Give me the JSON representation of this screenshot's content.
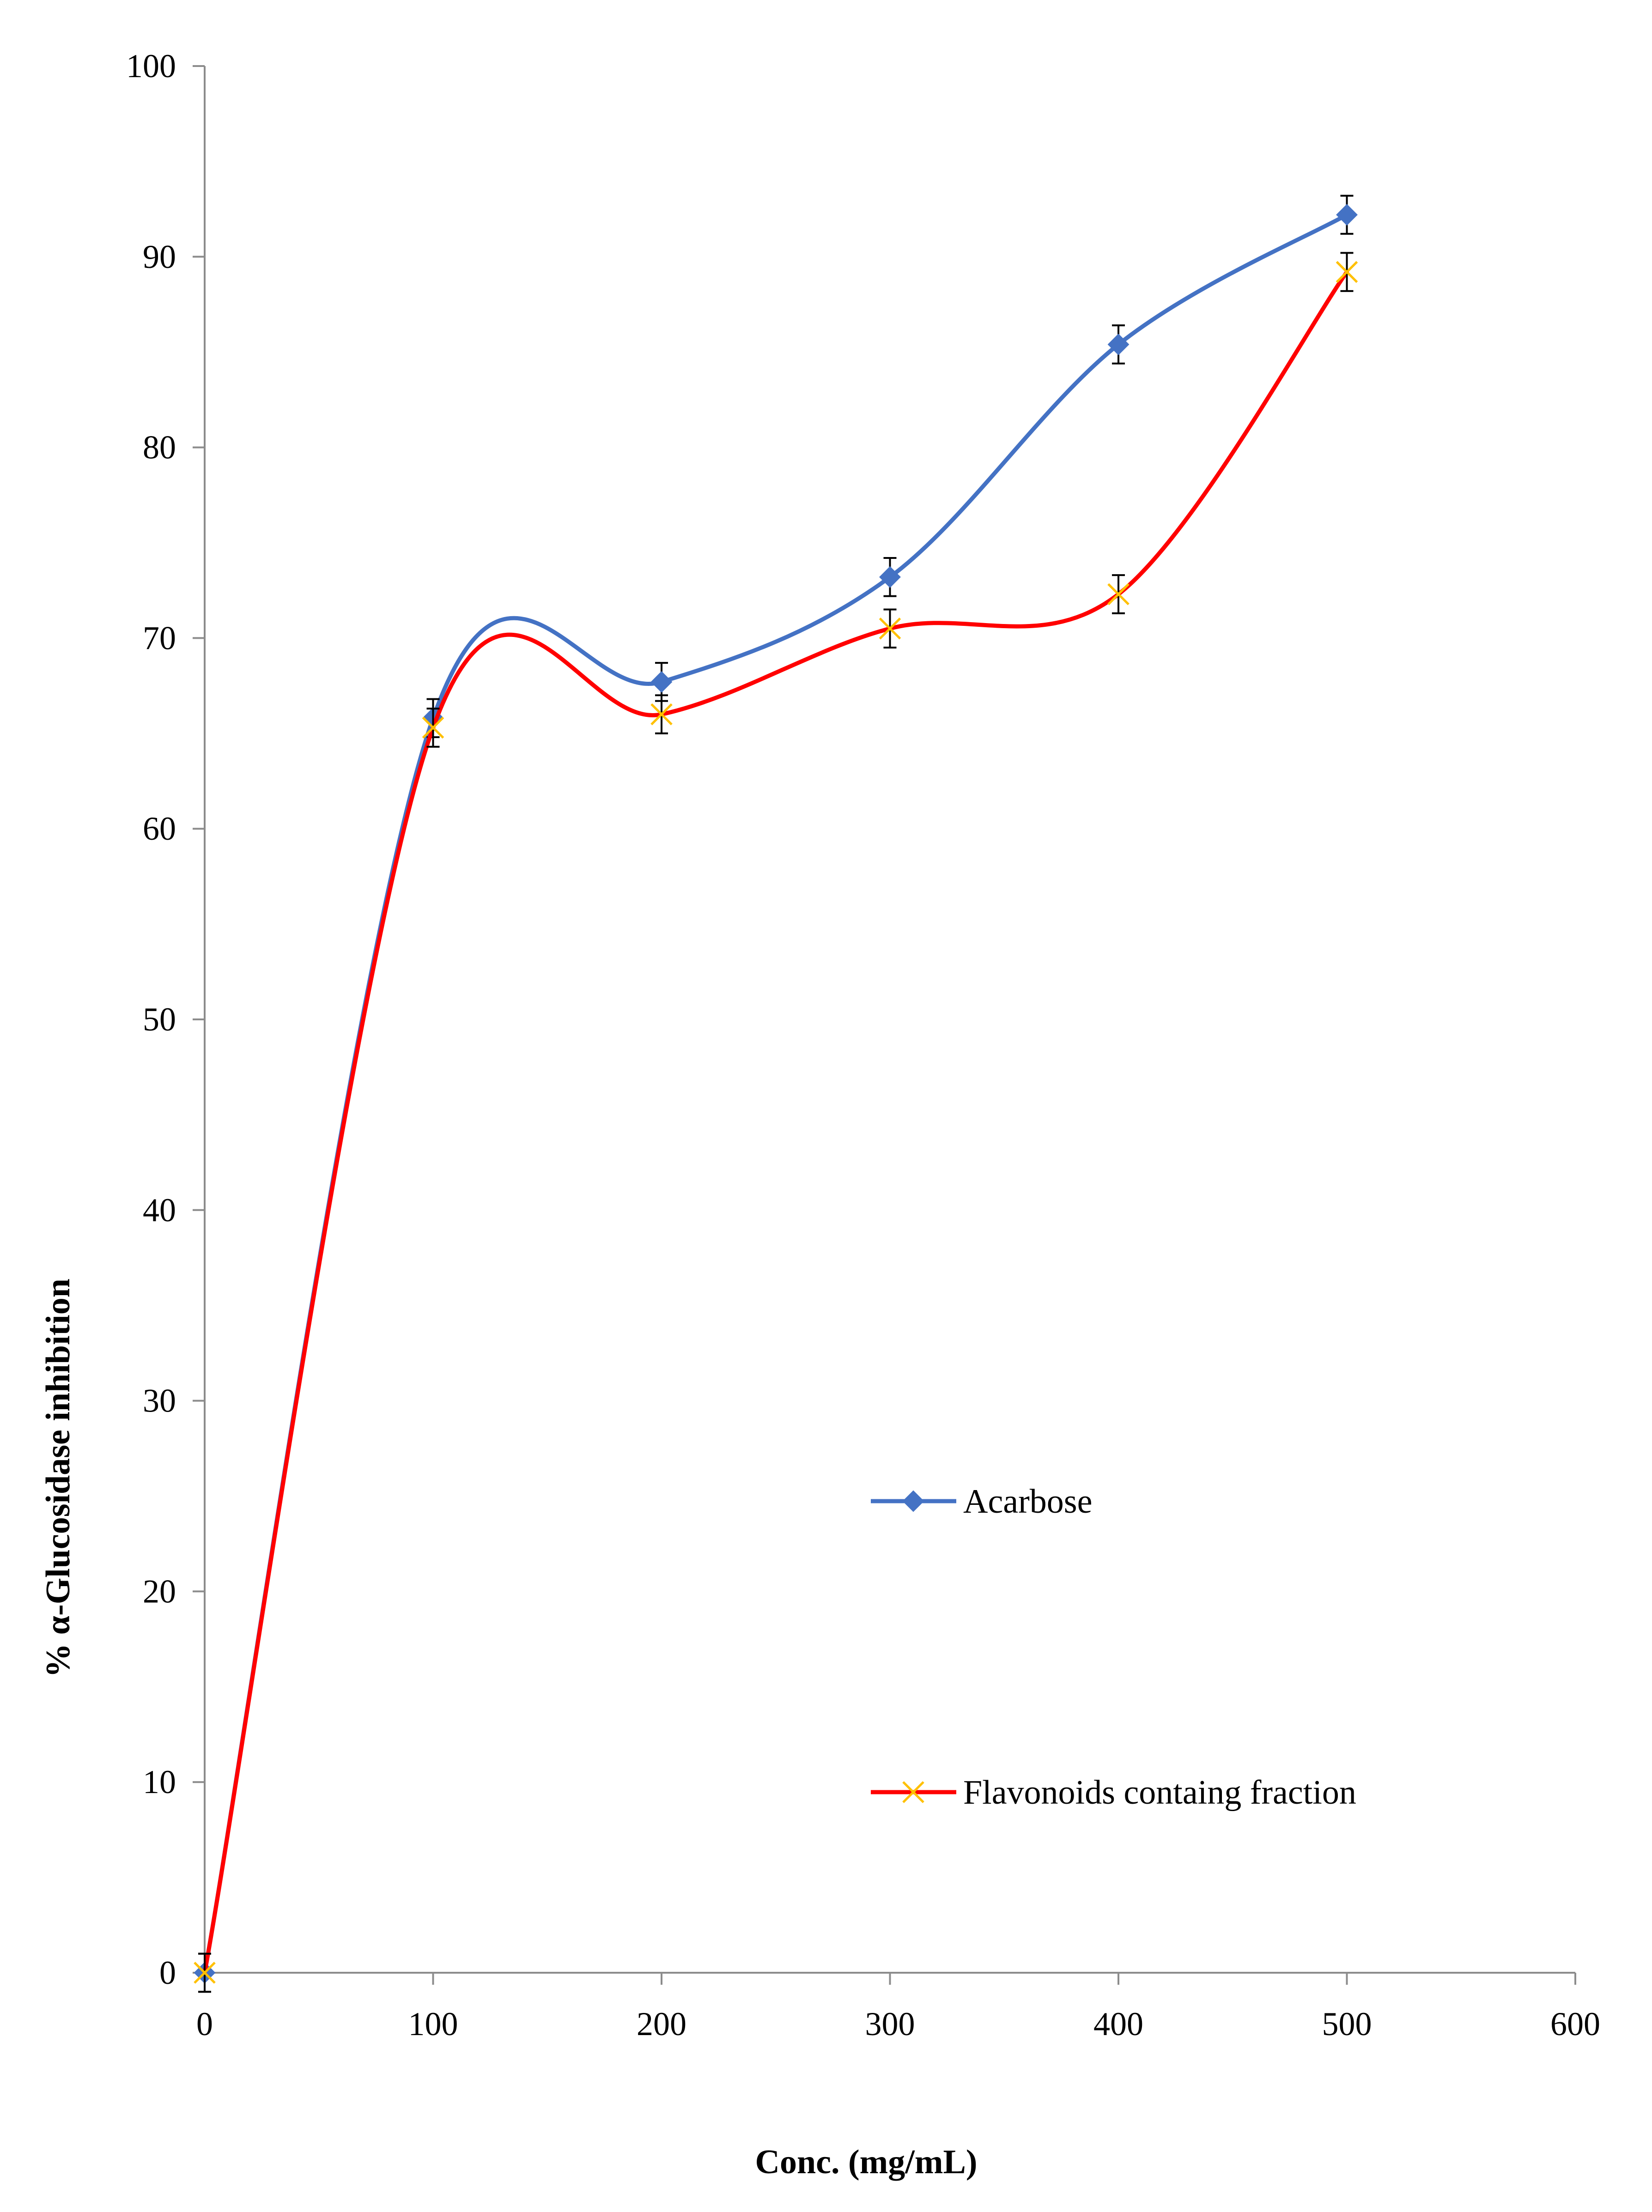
{
  "chart_data": {
    "type": "line",
    "title": "",
    "xlabel": "Conc. (mg/mL)",
    "ylabel": "% α-Glucosidase inhibition",
    "xlim": [
      0,
      600
    ],
    "ylim": [
      0,
      100
    ],
    "xticks": [
      0,
      100,
      200,
      300,
      400,
      500,
      600
    ],
    "yticks": [
      0,
      10,
      20,
      30,
      40,
      50,
      60,
      70,
      80,
      90,
      100
    ],
    "grid": false,
    "legend_placement": "center-right",
    "smooth": true,
    "series": [
      {
        "name": "Acarbose",
        "color": "#4472C4",
        "marker": "diamond",
        "x": [
          0,
          100,
          200,
          300,
          400,
          500
        ],
        "y": [
          0,
          65.8,
          67.7,
          73.2,
          85.4,
          92.2
        ],
        "error": [
          1,
          1,
          1,
          1,
          1,
          1
        ]
      },
      {
        "name": "Flavonoids containg fraction",
        "color": "#FF0000",
        "marker_color": "#FFC000",
        "marker": "x",
        "x": [
          0,
          100,
          200,
          300,
          400,
          500
        ],
        "y": [
          0,
          65.3,
          66.0,
          70.5,
          72.3,
          89.2
        ],
        "error": [
          1,
          1,
          1,
          1,
          1,
          1
        ]
      }
    ]
  }
}
